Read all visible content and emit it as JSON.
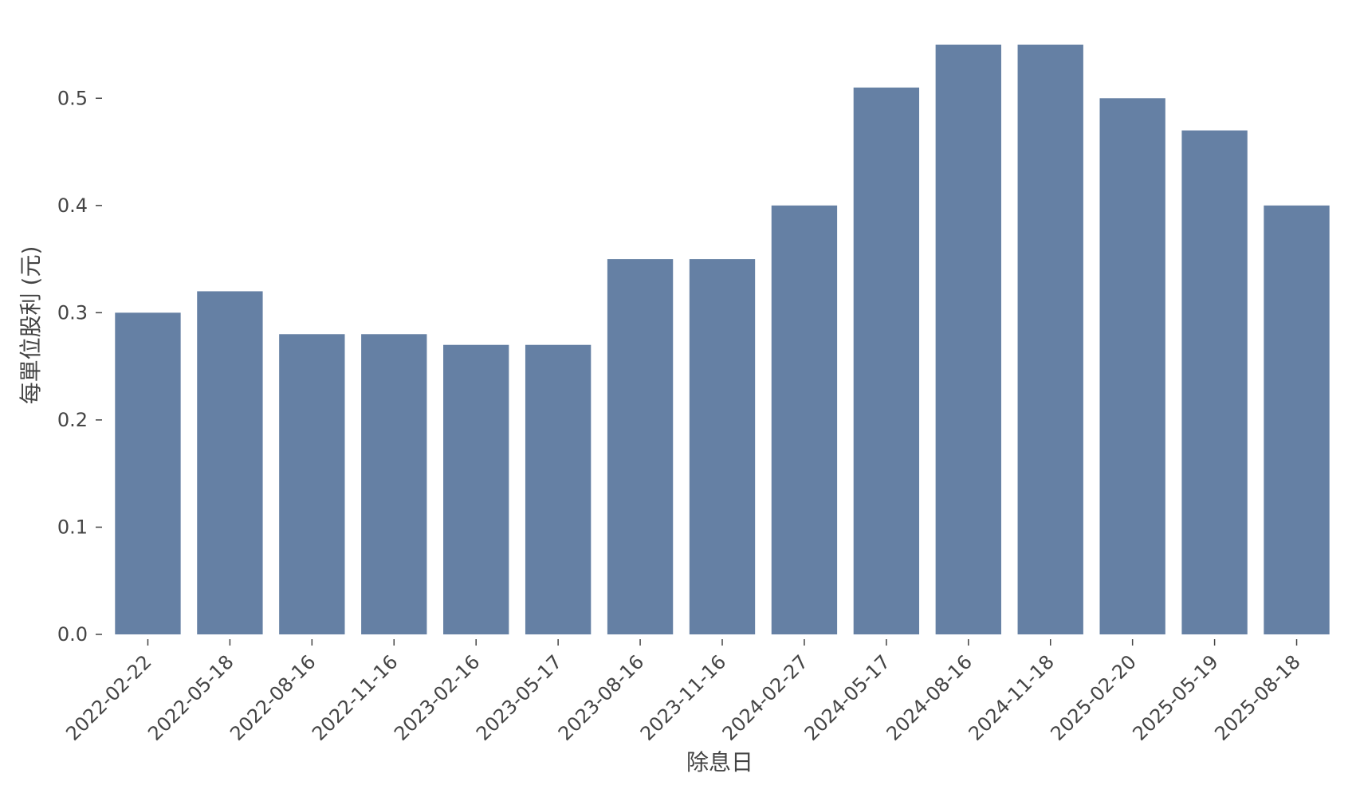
{
  "chart_data": {
    "type": "bar",
    "categories": [
      "2022-02-22",
      "2022-05-18",
      "2022-08-16",
      "2022-11-16",
      "2023-02-16",
      "2023-05-17",
      "2023-08-16",
      "2023-11-16",
      "2024-02-27",
      "2024-05-17",
      "2024-08-16",
      "2024-11-18",
      "2025-02-20",
      "2025-05-19",
      "2025-08-18"
    ],
    "values": [
      0.3,
      0.32,
      0.28,
      0.28,
      0.27,
      0.27,
      0.35,
      0.35,
      0.4,
      0.51,
      0.55,
      0.55,
      0.5,
      0.47,
      0.4
    ],
    "xlabel": "除息日",
    "ylabel": "每單位股利 (元)",
    "yticks": [
      "0.0",
      "0.1",
      "0.2",
      "0.3",
      "0.4",
      "0.5"
    ],
    "ylim": [
      0,
      0.55
    ],
    "bar_color": "#6580a4",
    "grid": false
  }
}
